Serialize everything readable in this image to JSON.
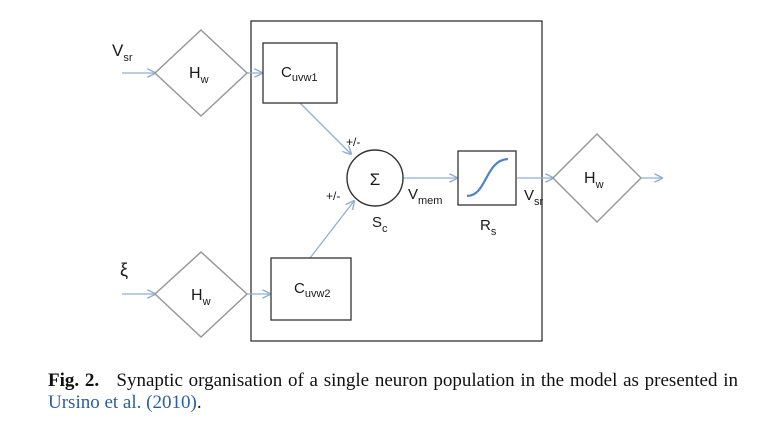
{
  "diagram": {
    "inputs": {
      "top": {
        "main": "V",
        "sub": "sr"
      },
      "bottom": {
        "main": "ξ"
      }
    },
    "blocks": {
      "hw_top": {
        "main": "H",
        "sub": "w"
      },
      "hw_bottom": {
        "main": "H",
        "sub": "w"
      },
      "hw_right": {
        "main": "H",
        "sub": "w"
      },
      "c1": {
        "main": "C",
        "sub": "uvw1"
      },
      "c2": {
        "main": "C",
        "sub": "uvw2"
      },
      "sum": {
        "symbol": "Σ",
        "main": "S",
        "sub": "c"
      },
      "sigmoid": {
        "main": "R",
        "sub": "s"
      }
    },
    "signs": {
      "top": "+/-",
      "left": "+/-"
    },
    "signals": {
      "vmem": {
        "main": "V",
        "sub": "mem"
      },
      "vsr_out": {
        "main": "V",
        "sub": "sr"
      }
    },
    "colors": {
      "line": "#8fb1d4",
      "box": "#333333",
      "diamond": "#999999",
      "curve": "#4f84c4"
    }
  },
  "caption": {
    "label": "Fig. 2.",
    "text": "Synaptic organisation of a single neuron population in the model as presented in",
    "ref": "Ursino et al. (2010)",
    "end": "."
  }
}
